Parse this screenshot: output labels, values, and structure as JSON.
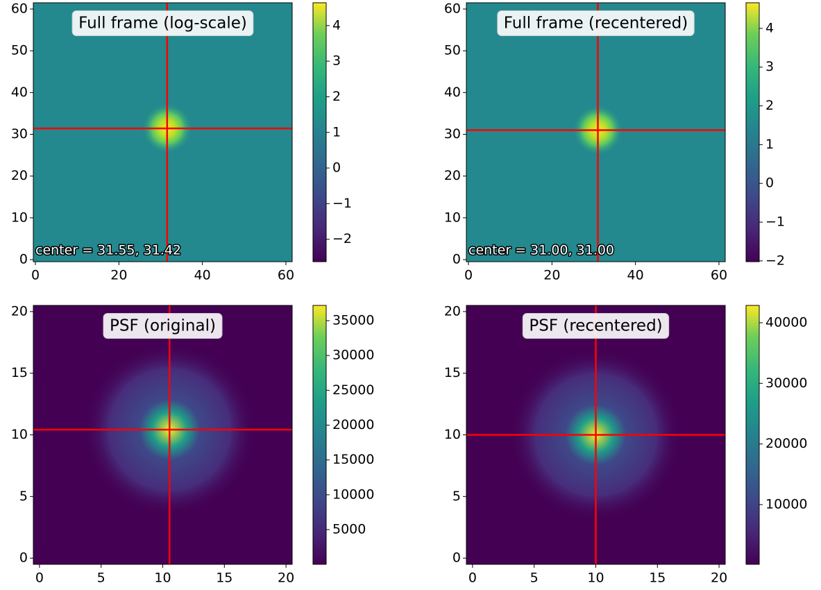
{
  "chart_data": [
    {
      "type": "heatmap",
      "title": "Full frame (log-scale)",
      "annotation": "center = 31.55, 31.42",
      "colormap": "viridis",
      "xlim": [
        -0.5,
        61.5
      ],
      "ylim": [
        -0.5,
        61.5
      ],
      "xticks": [
        0,
        20,
        40,
        60
      ],
      "yticks": [
        0,
        10,
        20,
        30,
        40,
        50,
        60
      ],
      "crosshair": {
        "x": 31.55,
        "y": 31.42,
        "color": "#ff0000"
      },
      "colorbar": {
        "clim": [
          -2.63,
          4.64
        ],
        "ticks": [
          {
            "value": -2,
            "label": "−2"
          },
          {
            "value": -1,
            "label": "−1"
          },
          0,
          1,
          2,
          3,
          4
        ]
      }
    },
    {
      "type": "heatmap",
      "title": "Full frame (recentered)",
      "annotation": "center = 31.00, 31.00",
      "colormap": "viridis",
      "xlim": [
        -0.5,
        61.5
      ],
      "ylim": [
        -0.5,
        61.5
      ],
      "xticks": [
        0,
        20,
        40,
        60
      ],
      "yticks": [
        0,
        10,
        20,
        30,
        40,
        50,
        60
      ],
      "crosshair": {
        "x": 31.0,
        "y": 31.0,
        "color": "#ff0000"
      },
      "colorbar": {
        "clim": [
          -2.02,
          4.66
        ],
        "ticks": [
          {
            "value": -2,
            "label": "−2"
          },
          {
            "value": -1,
            "label": "−1"
          },
          0,
          1,
          2,
          3,
          4
        ]
      }
    },
    {
      "type": "heatmap",
      "title": "PSF (original)",
      "colormap": "viridis",
      "xlim": [
        -0.5,
        20.5
      ],
      "ylim": [
        -0.5,
        20.5
      ],
      "xticks": [
        0,
        5,
        10,
        15,
        20
      ],
      "yticks": [
        0,
        5,
        10,
        15,
        20
      ],
      "crosshair": {
        "x": 10.55,
        "y": 10.42,
        "color": "#ff0000"
      },
      "colorbar": {
        "clim": [
          14,
          37190
        ],
        "ticks": [
          5000,
          10000,
          15000,
          20000,
          25000,
          30000,
          35000
        ]
      }
    },
    {
      "type": "heatmap",
      "title": "PSF (recentered)",
      "colormap": "viridis",
      "xlim": [
        -0.5,
        20.5
      ],
      "ylim": [
        -0.5,
        20.5
      ],
      "xticks": [
        0,
        5,
        10,
        15,
        20
      ],
      "yticks": [
        0,
        5,
        10,
        15,
        20
      ],
      "crosshair": {
        "x": 10.0,
        "y": 10.0,
        "color": "#ff0000"
      },
      "colorbar": {
        "clim": [
          150,
          42860
        ],
        "ticks": [
          10000,
          20000,
          30000,
          40000
        ]
      }
    }
  ]
}
